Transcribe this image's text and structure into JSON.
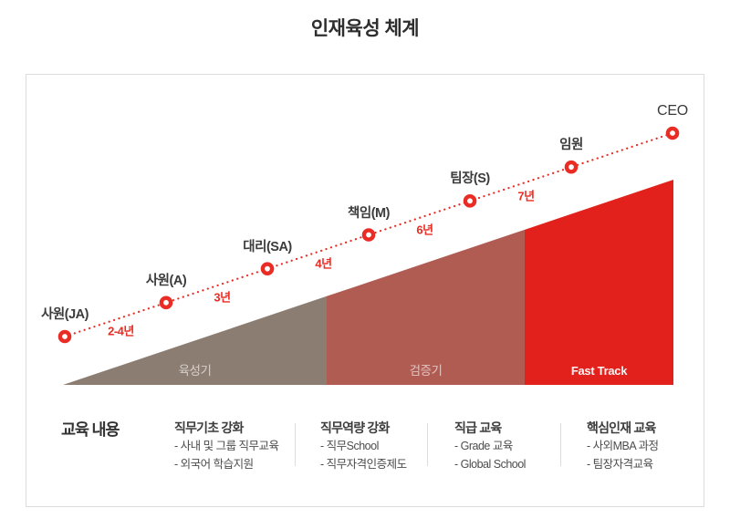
{
  "title": "인재육성 체계",
  "colors": {
    "accent_red": "#ea2d24",
    "growth_section": "#8c7d72",
    "verify_section": "#b05c53",
    "fast_track_section": "#e2211c"
  },
  "career_path": {
    "stages": [
      "사원(JA)",
      "사원(A)",
      "대리(SA)",
      "책임(M)",
      "팀장(S)",
      "임원",
      "CEO"
    ],
    "intervals": [
      "2-4년",
      "3년",
      "4년",
      "6년",
      "7년"
    ]
  },
  "sections": [
    {
      "label": "육성기"
    },
    {
      "label": "검증기"
    },
    {
      "label": "Fast Track"
    }
  ],
  "education": {
    "title": "교육 내용",
    "columns": [
      {
        "header": "직무기초 강화",
        "items": [
          "- 사내 및 그룹 직무교육",
          "- 외국어 학습지원"
        ]
      },
      {
        "header": "직무역량 강화",
        "items": [
          "- 직무School",
          "- 직무자격인증제도"
        ]
      },
      {
        "header": "직급 교육",
        "items": [
          "- Grade 교육",
          "- Global School"
        ]
      },
      {
        "header": "핵심인재 교육",
        "items": [
          "- 사외MBA 과정",
          "- 팀장자격교육"
        ]
      }
    ]
  }
}
